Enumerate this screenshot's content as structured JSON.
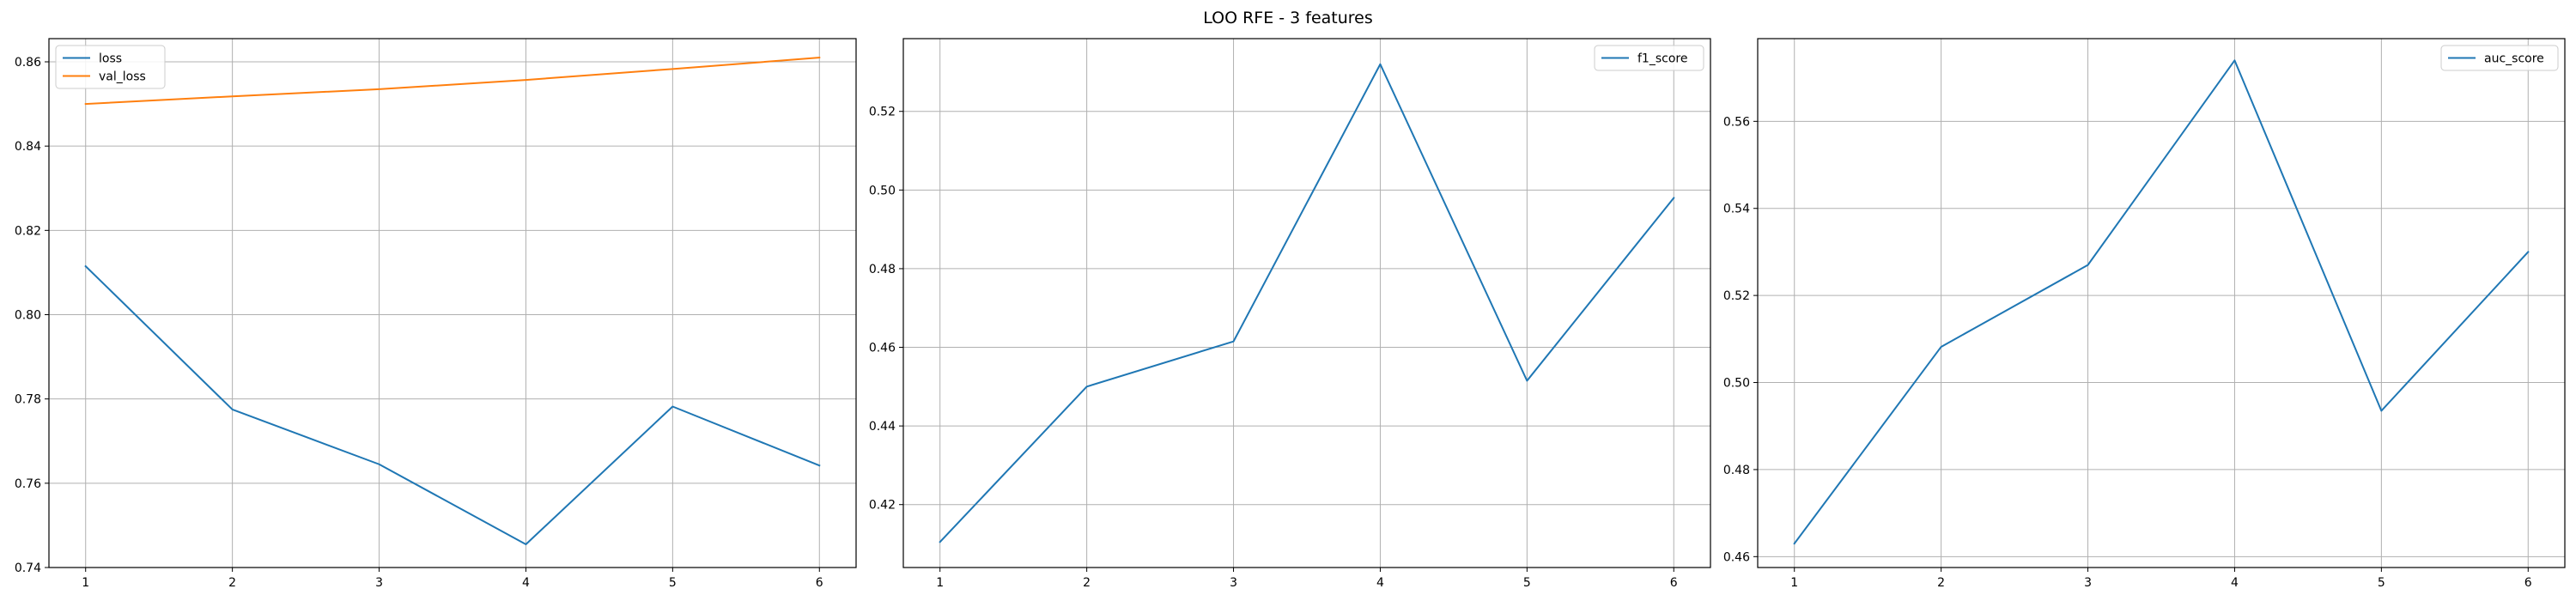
{
  "figure": {
    "title": "LOO RFE - 3 features"
  },
  "colors": {
    "series_blue": "#1f77b4",
    "series_orange": "#ff7f0e",
    "grid": "#b0b0b0",
    "axes": "#000000",
    "legend_border": "#cccccc"
  },
  "chart_data": [
    {
      "type": "line",
      "title": "",
      "xlabel": "",
      "ylabel": "",
      "grid": true,
      "legend": "upper-left",
      "xlim": [
        0.75,
        6.25
      ],
      "ylim": [
        0.74,
        0.8655
      ],
      "xticks": [
        1,
        2,
        3,
        4,
        5,
        6
      ],
      "yticks": [
        0.74,
        0.76,
        0.78,
        0.8,
        0.82,
        0.84,
        0.86
      ],
      "ytick_labels": [
        "0.74",
        "0.76",
        "0.78",
        "0.80",
        "0.82",
        "0.84",
        "0.86"
      ],
      "x": [
        1,
        2,
        3,
        4,
        5,
        6
      ],
      "series": [
        {
          "name": "loss",
          "color": "#1f77b4",
          "values": [
            0.8115,
            0.7775,
            0.7645,
            0.7455,
            0.7782,
            0.7642
          ]
        },
        {
          "name": "val_loss",
          "color": "#ff7f0e",
          "values": [
            0.85,
            0.8518,
            0.8535,
            0.8557,
            0.8583,
            0.861
          ]
        }
      ]
    },
    {
      "type": "line",
      "title": "",
      "xlabel": "",
      "ylabel": "",
      "grid": true,
      "legend": "upper-right",
      "xlim": [
        0.75,
        6.25
      ],
      "ylim": [
        0.404,
        0.5385
      ],
      "xticks": [
        1,
        2,
        3,
        4,
        5,
        6
      ],
      "yticks": [
        0.42,
        0.44,
        0.46,
        0.48,
        0.5,
        0.52
      ],
      "ytick_labels": [
        "0.42",
        "0.44",
        "0.46",
        "0.48",
        "0.50",
        "0.52"
      ],
      "x": [
        1,
        2,
        3,
        4,
        5,
        6
      ],
      "series": [
        {
          "name": "f1_score",
          "color": "#1f77b4",
          "values": [
            0.4105,
            0.45,
            0.4615,
            0.532,
            0.4515,
            0.498
          ]
        }
      ]
    },
    {
      "type": "line",
      "title": "",
      "xlabel": "",
      "ylabel": "",
      "grid": true,
      "legend": "upper-right",
      "xlim": [
        0.75,
        6.25
      ],
      "ylim": [
        0.4575,
        0.579
      ],
      "xticks": [
        1,
        2,
        3,
        4,
        5,
        6
      ],
      "yticks": [
        0.46,
        0.48,
        0.5,
        0.52,
        0.54,
        0.56
      ],
      "ytick_labels": [
        "0.46",
        "0.48",
        "0.50",
        "0.52",
        "0.54",
        "0.56"
      ],
      "x": [
        1,
        2,
        3,
        4,
        5,
        6
      ],
      "series": [
        {
          "name": "auc_score",
          "color": "#1f77b4",
          "values": [
            0.463,
            0.5082,
            0.527,
            0.574,
            0.4935,
            0.53
          ]
        }
      ]
    }
  ]
}
